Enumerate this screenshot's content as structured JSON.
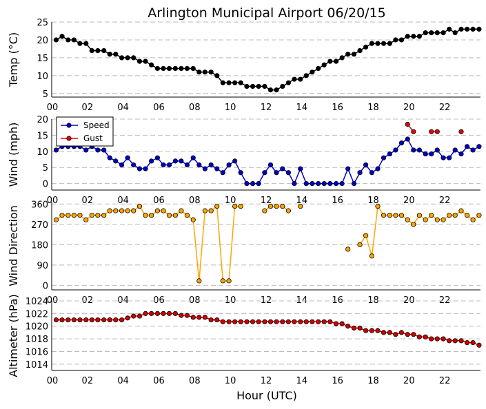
{
  "title": "Arlington Municipal Airport 06/20/15",
  "xlabel": "Hour (UTC)",
  "x_ticks": [
    "00",
    "02",
    "04",
    "06",
    "08",
    "10",
    "12",
    "14",
    "16",
    "18",
    "20",
    "22"
  ],
  "chart_data": [
    {
      "type": "line",
      "ylabel": "Temp (°C)",
      "ylim": [
        4,
        25
      ],
      "yticks": [
        5,
        10,
        15,
        20,
        25
      ],
      "xlim": [
        0,
        24
      ],
      "grid": true,
      "series": [
        {
          "name": "Temp",
          "color": "#000000",
          "x": [
            0.25,
            0.58,
            0.92,
            1.25,
            1.58,
            1.92,
            2.25,
            2.58,
            2.92,
            3.25,
            3.58,
            3.92,
            4.25,
            4.58,
            4.92,
            5.25,
            5.58,
            5.92,
            6.25,
            6.58,
            6.92,
            7.25,
            7.58,
            7.92,
            8.25,
            8.58,
            8.92,
            9.25,
            9.58,
            9.92,
            10.25,
            10.58,
            10.92,
            11.25,
            11.58,
            11.92,
            12.25,
            12.58,
            12.92,
            13.25,
            13.58,
            13.92,
            14.25,
            14.58,
            14.92,
            15.25,
            15.58,
            15.92,
            16.25,
            16.58,
            16.92,
            17.25,
            17.58,
            17.92,
            18.25,
            18.58,
            18.92,
            19.25,
            19.58,
            19.92,
            20.25,
            20.58,
            20.92,
            21.25,
            21.58,
            21.92,
            22.25,
            22.58,
            22.92,
            23.25,
            23.58,
            23.92
          ],
          "y": [
            20,
            21,
            20,
            20,
            19,
            19,
            17,
            17,
            17,
            16,
            16,
            15,
            15,
            15,
            14,
            14,
            13,
            12,
            12,
            12,
            12,
            12,
            12,
            12,
            11,
            11,
            11,
            10,
            8,
            8,
            8,
            8,
            7,
            7,
            7,
            7,
            6,
            6,
            7,
            8,
            9,
            9,
            10,
            11,
            12,
            13,
            14,
            14,
            15,
            16,
            16,
            17,
            18,
            19,
            19,
            19,
            19,
            20,
            20,
            21,
            21,
            21,
            22,
            22,
            22,
            22,
            23,
            22,
            23,
            23,
            23,
            23
          ]
        }
      ]
    },
    {
      "type": "line",
      "ylabel": "Wind (mph)",
      "ylim": [
        -2,
        20
      ],
      "yticks": [
        0,
        5,
        10,
        15,
        20
      ],
      "xlim": [
        0,
        24
      ],
      "grid": true,
      "legend": "top-left",
      "series": [
        {
          "name": "Speed",
          "color": "#0000cc",
          "x": [
            0.25,
            0.58,
            0.92,
            1.25,
            1.58,
            1.92,
            2.25,
            2.58,
            2.92,
            3.25,
            3.58,
            3.92,
            4.25,
            4.58,
            4.92,
            5.25,
            5.58,
            5.92,
            6.25,
            6.58,
            6.92,
            7.25,
            7.58,
            7.92,
            8.25,
            8.58,
            8.92,
            9.25,
            9.58,
            9.92,
            10.25,
            10.58,
            10.92,
            11.25,
            11.58,
            11.92,
            12.25,
            12.58,
            12.92,
            13.25,
            13.58,
            13.92,
            14.25,
            14.58,
            14.92,
            15.25,
            15.58,
            15.92,
            16.25,
            16.58,
            16.92,
            17.25,
            17.58,
            17.92,
            18.25,
            18.58,
            18.92,
            19.25,
            19.58,
            19.92,
            20.25,
            20.58,
            20.92,
            21.25,
            21.58,
            21.92,
            22.25,
            22.58,
            22.92,
            23.25,
            23.58,
            23.92
          ],
          "y": [
            10.4,
            11.5,
            11.5,
            11.5,
            11.5,
            10.4,
            11.5,
            10.4,
            10.4,
            8,
            7,
            5.8,
            8,
            5.8,
            4.6,
            4.6,
            7,
            8,
            5.8,
            5.8,
            7,
            7,
            5.8,
            8,
            5.8,
            4.6,
            5.8,
            4.6,
            3.4,
            5.8,
            7,
            3.4,
            0,
            0,
            0,
            3.4,
            5.8,
            3.4,
            4.6,
            3.4,
            0,
            4.6,
            0,
            0,
            0,
            0,
            0,
            0,
            0,
            4.6,
            0,
            3.4,
            5.8,
            3.4,
            4.6,
            8,
            9.2,
            10.4,
            12.6,
            13.8,
            10.4,
            10.4,
            9.2,
            9.2,
            10.4,
            8,
            8,
            10.4,
            9.2,
            11.5,
            10.4,
            11.5
          ]
        },
        {
          "name": "Gust",
          "color": "#ee0000",
          "segments": [
            {
              "x": [
                19.92,
                20.25
              ],
              "y": [
                18.4,
                16.1
              ]
            },
            {
              "x": [
                21.25,
                21.58
              ],
              "y": [
                16.1,
                16.1
              ]
            },
            {
              "x": [
                22.92
              ],
              "y": [
                16.1
              ]
            }
          ]
        }
      ]
    },
    {
      "type": "line",
      "ylabel": "Wind Direction",
      "ylim": [
        -20,
        370
      ],
      "yticks": [
        0,
        90,
        180,
        270,
        360
      ],
      "xlim": [
        0,
        24
      ],
      "grid": true,
      "series": [
        {
          "name": "Direction",
          "color": "#ffa500",
          "segments": [
            {
              "x": [
                0.25,
                0.58,
                0.92,
                1.25,
                1.58,
                1.92,
                2.25,
                2.58,
                2.92,
                3.25,
                3.58,
                3.92,
                4.25,
                4.58,
                4.92,
                5.25,
                5.58,
                5.92,
                6.25,
                6.58,
                6.92,
                7.25,
                7.58,
                7.92,
                8.25,
                8.58,
                8.92,
                9.25,
                9.58,
                9.92,
                10.25,
                10.58
              ],
              "y": [
                290,
                310,
                310,
                310,
                310,
                290,
                310,
                310,
                310,
                330,
                330,
                330,
                330,
                330,
                350,
                310,
                310,
                330,
                330,
                310,
                310,
                330,
                310,
                290,
                20,
                330,
                330,
                350,
                20,
                20,
                350,
                350
              ]
            },
            {
              "x": [
                11.92,
                12.25,
                12.58,
                12.92,
                13.25
              ],
              "y": [
                330,
                350,
                350,
                350,
                330
              ]
            },
            {
              "x": [
                13.92
              ],
              "y": [
                350
              ]
            },
            {
              "x": [
                16.58
              ],
              "y": [
                160
              ]
            },
            {
              "x": [
                17.25,
                17.58,
                17.92,
                18.25,
                18.58,
                18.92,
                19.25,
                19.58,
                19.92,
                20.25,
                20.58,
                20.92,
                21.25,
                21.58,
                21.92,
                22.25,
                22.58,
                22.92,
                23.25,
                23.58,
                23.92
              ],
              "y": [
                180,
                220,
                130,
                350,
                310,
                310,
                310,
                310,
                290,
                270,
                310,
                290,
                310,
                290,
                290,
                310,
                310,
                330,
                310,
                290,
                310
              ]
            }
          ]
        }
      ]
    },
    {
      "type": "line",
      "ylabel": "Altimeter (hPa)",
      "ylim": [
        1013,
        1024
      ],
      "yticks": [
        1014,
        1016,
        1018,
        1020,
        1022,
        1024
      ],
      "xlim": [
        0,
        24
      ],
      "grid": true,
      "series": [
        {
          "name": "Altimeter",
          "color": "#cc0000",
          "x": [
            0.25,
            0.58,
            0.92,
            1.25,
            1.58,
            1.92,
            2.25,
            2.58,
            2.92,
            3.25,
            3.58,
            3.92,
            4.25,
            4.58,
            4.92,
            5.25,
            5.58,
            5.92,
            6.25,
            6.58,
            6.92,
            7.25,
            7.58,
            7.92,
            8.25,
            8.58,
            8.92,
            9.25,
            9.58,
            9.92,
            10.25,
            10.58,
            10.92,
            11.25,
            11.58,
            11.92,
            12.25,
            12.58,
            12.92,
            13.25,
            13.58,
            13.92,
            14.25,
            14.58,
            14.92,
            15.25,
            15.58,
            15.92,
            16.25,
            16.58,
            16.92,
            17.25,
            17.58,
            17.92,
            18.25,
            18.58,
            18.92,
            19.25,
            19.58,
            19.92,
            20.25,
            20.58,
            20.92,
            21.25,
            21.58,
            21.92,
            22.25,
            22.58,
            22.92,
            23.25,
            23.58,
            23.92
          ],
          "y": [
            1021,
            1021,
            1021,
            1021,
            1021,
            1021,
            1021,
            1021,
            1021,
            1021,
            1021,
            1021,
            1021.3,
            1021.6,
            1021.6,
            1022,
            1022,
            1022,
            1022,
            1022,
            1022,
            1021.7,
            1021.7,
            1021.4,
            1021.4,
            1021.4,
            1021,
            1021,
            1020.7,
            1020.7,
            1020.7,
            1020.7,
            1020.7,
            1020.7,
            1020.7,
            1020.7,
            1020.7,
            1020.7,
            1020.7,
            1020.7,
            1020.7,
            1020.7,
            1020.7,
            1020.7,
            1020.7,
            1020.7,
            1020.7,
            1020.4,
            1020.4,
            1020,
            1019.7,
            1019.7,
            1019.3,
            1019.3,
            1019.3,
            1019,
            1019,
            1018.7,
            1019,
            1018.7,
            1018.7,
            1018.3,
            1018.3,
            1018,
            1018,
            1018,
            1017.7,
            1017.7,
            1017.7,
            1017.4,
            1017.4,
            1017
          ]
        }
      ]
    }
  ]
}
